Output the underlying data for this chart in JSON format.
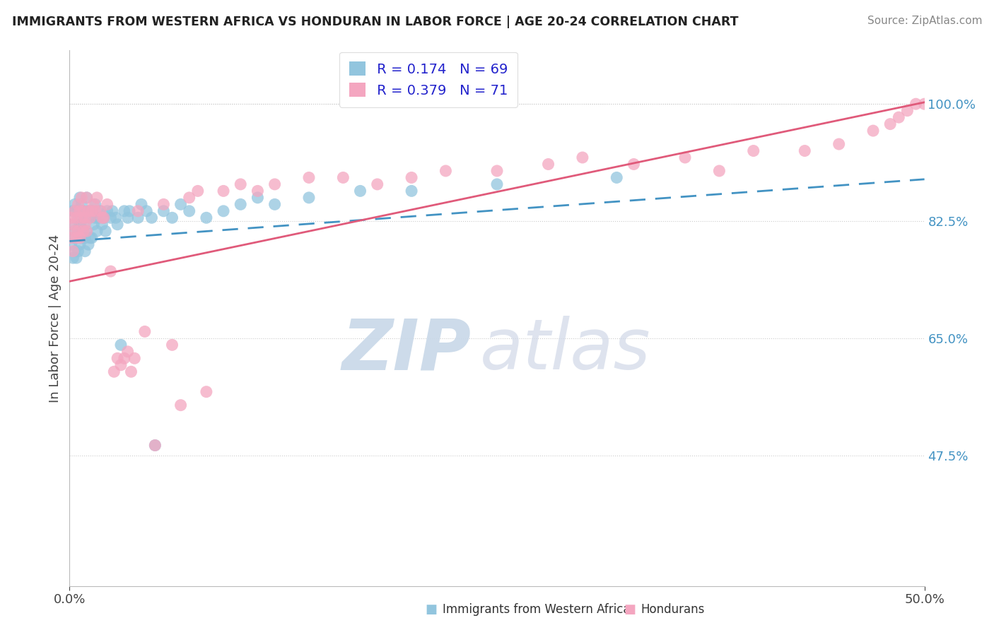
{
  "title": "IMMIGRANTS FROM WESTERN AFRICA VS HONDURAN IN LABOR FORCE | AGE 20-24 CORRELATION CHART",
  "source": "Source: ZipAtlas.com",
  "ylabel": "In Labor Force | Age 20-24",
  "legend_label1": "Immigrants from Western Africa",
  "legend_label2": "Hondurans",
  "R1": 0.174,
  "N1": 69,
  "R2": 0.379,
  "N2": 71,
  "xlim": [
    0.0,
    0.5
  ],
  "ylim": [
    0.28,
    1.08
  ],
  "yticks": [
    0.475,
    0.65,
    0.825,
    1.0
  ],
  "ytick_labels": [
    "47.5%",
    "65.0%",
    "82.5%",
    "100.0%"
  ],
  "xticks": [
    0.0,
    0.5
  ],
  "xtick_labels": [
    "0.0%",
    "50.0%"
  ],
  "color_blue": "#92c5de",
  "color_pink": "#f4a6c0",
  "line_blue": "#4393c3",
  "line_pink": "#e05a7a",
  "background_color": "#ffffff",
  "watermark_zip": "ZIP",
  "watermark_atlas": "atlas",
  "blue_intercept": 0.795,
  "blue_slope": 0.185,
  "pink_intercept": 0.735,
  "pink_slope": 0.535,
  "blue_x": [
    0.001,
    0.001,
    0.002,
    0.002,
    0.002,
    0.003,
    0.003,
    0.003,
    0.004,
    0.004,
    0.005,
    0.005,
    0.005,
    0.006,
    0.006,
    0.006,
    0.007,
    0.007,
    0.007,
    0.008,
    0.008,
    0.009,
    0.009,
    0.009,
    0.01,
    0.01,
    0.011,
    0.011,
    0.012,
    0.012,
    0.013,
    0.013,
    0.014,
    0.015,
    0.015,
    0.016,
    0.017,
    0.018,
    0.019,
    0.02,
    0.021,
    0.022,
    0.024,
    0.025,
    0.027,
    0.028,
    0.03,
    0.032,
    0.034,
    0.035,
    0.04,
    0.042,
    0.045,
    0.048,
    0.05,
    0.055,
    0.06,
    0.065,
    0.07,
    0.08,
    0.09,
    0.1,
    0.11,
    0.12,
    0.14,
    0.17,
    0.2,
    0.25,
    0.32
  ],
  "blue_y": [
    0.82,
    0.79,
    0.84,
    0.8,
    0.77,
    0.85,
    0.81,
    0.78,
    0.84,
    0.77,
    0.83,
    0.81,
    0.78,
    0.86,
    0.82,
    0.79,
    0.85,
    0.82,
    0.8,
    0.84,
    0.81,
    0.83,
    0.8,
    0.78,
    0.86,
    0.81,
    0.84,
    0.79,
    0.83,
    0.8,
    0.84,
    0.8,
    0.82,
    0.83,
    0.85,
    0.81,
    0.83,
    0.84,
    0.82,
    0.83,
    0.81,
    0.84,
    0.83,
    0.84,
    0.83,
    0.82,
    0.64,
    0.84,
    0.83,
    0.84,
    0.83,
    0.85,
    0.84,
    0.83,
    0.49,
    0.84,
    0.83,
    0.85,
    0.84,
    0.83,
    0.84,
    0.85,
    0.86,
    0.85,
    0.86,
    0.87,
    0.87,
    0.88,
    0.89
  ],
  "pink_x": [
    0.001,
    0.001,
    0.002,
    0.002,
    0.003,
    0.003,
    0.004,
    0.004,
    0.005,
    0.005,
    0.006,
    0.006,
    0.007,
    0.007,
    0.008,
    0.008,
    0.009,
    0.009,
    0.01,
    0.01,
    0.011,
    0.012,
    0.013,
    0.014,
    0.015,
    0.016,
    0.018,
    0.019,
    0.02,
    0.022,
    0.024,
    0.026,
    0.028,
    0.03,
    0.032,
    0.034,
    0.036,
    0.038,
    0.04,
    0.044,
    0.05,
    0.055,
    0.06,
    0.065,
    0.07,
    0.075,
    0.08,
    0.09,
    0.1,
    0.11,
    0.12,
    0.14,
    0.16,
    0.18,
    0.2,
    0.22,
    0.25,
    0.28,
    0.3,
    0.33,
    0.36,
    0.38,
    0.4,
    0.43,
    0.45,
    0.47,
    0.48,
    0.485,
    0.49,
    0.495,
    0.5
  ],
  "pink_y": [
    0.83,
    0.8,
    0.82,
    0.78,
    0.84,
    0.81,
    0.8,
    0.83,
    0.85,
    0.81,
    0.84,
    0.8,
    0.86,
    0.83,
    0.84,
    0.81,
    0.83,
    0.82,
    0.86,
    0.81,
    0.84,
    0.83,
    0.84,
    0.85,
    0.84,
    0.86,
    0.84,
    0.83,
    0.83,
    0.85,
    0.75,
    0.6,
    0.62,
    0.61,
    0.62,
    0.63,
    0.6,
    0.62,
    0.84,
    0.66,
    0.49,
    0.85,
    0.64,
    0.55,
    0.86,
    0.87,
    0.57,
    0.87,
    0.88,
    0.87,
    0.88,
    0.89,
    0.89,
    0.88,
    0.89,
    0.9,
    0.9,
    0.91,
    0.92,
    0.91,
    0.92,
    0.9,
    0.93,
    0.93,
    0.94,
    0.96,
    0.97,
    0.98,
    0.99,
    1.0,
    1.0
  ]
}
